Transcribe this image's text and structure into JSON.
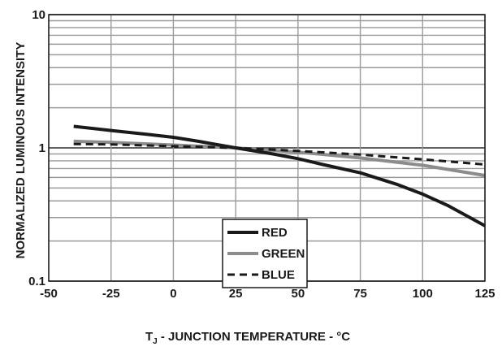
{
  "chart_data": {
    "type": "line",
    "xlabel": "TJ - JUNCTION TEMPERATURE - °C",
    "xlabel_parts": {
      "t": "T",
      "sub": "J",
      "rest": " - JUNCTION TEMPERATURE - °C"
    },
    "ylabel": "NORMALIZED LUMINOUS INTENSITY",
    "xlim": [
      -50,
      125
    ],
    "ylim": [
      0.1,
      10
    ],
    "yscale": "log",
    "grid": true,
    "legend_position": "bottom-center",
    "x_ticks": [
      -50,
      -25,
      0,
      25,
      50,
      75,
      100,
      125
    ],
    "x_tick_labels": [
      "-50",
      "-25",
      "0",
      "25",
      "50",
      "75",
      "100",
      "125"
    ],
    "y_ticks": [
      0.1,
      1,
      10
    ],
    "y_tick_labels": [
      "0.1",
      "1",
      "10"
    ],
    "series": [
      {
        "name": "RED",
        "color": "#1a1a1a",
        "style": "solid",
        "x": [
          -40,
          -25,
          -10,
          0,
          10,
          25,
          40,
          50,
          60,
          75,
          90,
          100,
          110,
          125
        ],
        "y": [
          1.45,
          1.35,
          1.26,
          1.2,
          1.12,
          1.0,
          0.9,
          0.83,
          0.75,
          0.65,
          0.53,
          0.45,
          0.37,
          0.26
        ]
      },
      {
        "name": "GREEN",
        "color": "#8c8c8c",
        "style": "solid",
        "x": [
          -40,
          -25,
          0,
          25,
          50,
          75,
          100,
          125
        ],
        "y": [
          1.12,
          1.1,
          1.05,
          1.0,
          0.93,
          0.84,
          0.74,
          0.62
        ]
      },
      {
        "name": "BLUE",
        "color": "#1a1a1a",
        "style": "dashed",
        "x": [
          -40,
          -25,
          0,
          25,
          50,
          75,
          100,
          125
        ],
        "y": [
          1.07,
          1.06,
          1.03,
          1.0,
          0.95,
          0.89,
          0.82,
          0.75
        ]
      }
    ]
  }
}
